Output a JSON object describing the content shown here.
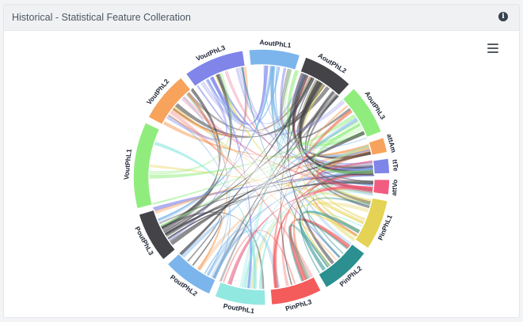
{
  "header": {
    "title": "Historical - Statistical Feature Colleration",
    "info_icon": "info-circle-icon",
    "menu_icon": "hamburger-menu-icon"
  },
  "chart_data": {
    "type": "chord",
    "title": "",
    "groups": [
      {
        "name": "AoutPhL1",
        "color": "#7cb5ec"
      },
      {
        "name": "AoutPhL2",
        "color": "#434348"
      },
      {
        "name": "AoutPhL3",
        "color": "#90ed7d"
      },
      {
        "name": "attAm",
        "color": "#f7a35c"
      },
      {
        "name": "ttTe",
        "color": "#8085e9"
      },
      {
        "name": "attVo",
        "color": "#f15c80"
      },
      {
        "name": "PinPhL1",
        "color": "#e4d354"
      },
      {
        "name": "PinPhL2",
        "color": "#2b908f"
      },
      {
        "name": "PinPhL3",
        "color": "#f45b5b"
      },
      {
        "name": "PoutPhL1",
        "color": "#91e8e1"
      },
      {
        "name": "PoutPhL2",
        "color": "#7cb5ec"
      },
      {
        "name": "PoutPhL3",
        "color": "#434348"
      },
      {
        "name": "VoutPhL1",
        "color": "#90ed7d"
      },
      {
        "name": "VoutPhL2",
        "color": "#f7a35c"
      },
      {
        "name": "VoutPhL3",
        "color": "#8085e9"
      }
    ],
    "group_values": [
      10,
      10,
      10,
      3,
      3,
      3,
      10,
      10,
      10,
      10,
      10,
      10,
      17,
      10,
      12
    ]
  }
}
